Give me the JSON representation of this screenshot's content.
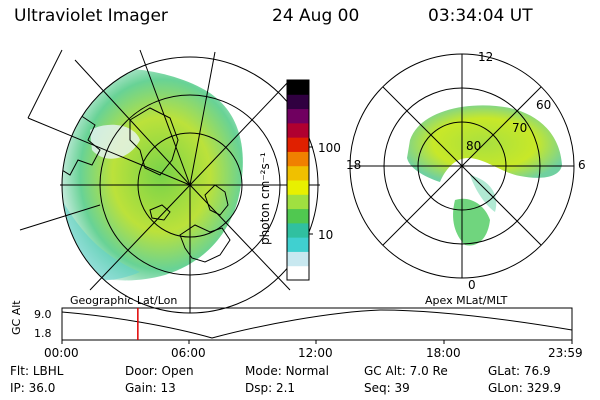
{
  "header": {
    "instrument": "Ultraviolet Imager",
    "date": "24 Aug 00",
    "time": "03:34:04 UT"
  },
  "colorbar": {
    "unit_label": "photon cm⁻²s⁻¹",
    "ticks": [
      {
        "label": "100",
        "value": 100
      },
      {
        "label": "10",
        "value": 10
      }
    ],
    "scale": "log",
    "colors": [
      "#ffffff",
      "#c8e8f0",
      "#40d0d0",
      "#30c0a0",
      "#50c850",
      "#a0e040",
      "#e8f000",
      "#f0c000",
      "#f08000",
      "#e02000",
      "#b00030",
      "#700060",
      "#300040",
      "#000000"
    ]
  },
  "panels": {
    "left_label": "Geographic Lat/Lon",
    "right_label": "Apex MLat/MLT",
    "polar_lat_labels": [
      "80",
      "70",
      "60"
    ],
    "polar_mlt_labels": [
      "12",
      "18",
      "6",
      "0"
    ]
  },
  "timeline": {
    "ylabel": "GC Alt",
    "y_ticks": [
      "9.0",
      "1.8"
    ],
    "x_ticks": [
      "00:00",
      "06:00",
      "12:00",
      "18:00",
      "23:59"
    ],
    "marker_time": "03:34",
    "marker_color": "#e00000"
  },
  "info": {
    "row1": [
      {
        "key": "Flt:",
        "val": "LBHL"
      },
      {
        "key": "Door:",
        "val": "Open"
      },
      {
        "key": "Mode:",
        "val": "Normal"
      },
      {
        "key": "GC Alt:",
        "val": "7.0 Re"
      },
      {
        "key": "GLat:",
        "val": "76.9"
      }
    ],
    "row2": [
      {
        "key": "IP:",
        "val": "36.0"
      },
      {
        "key": "Gain:",
        "val": "13"
      },
      {
        "key": "Dsp:",
        "val": "2.1"
      },
      {
        "key": "Seq:",
        "val": "39"
      },
      {
        "key": "GLon:",
        "val": "329.9"
      }
    ]
  }
}
